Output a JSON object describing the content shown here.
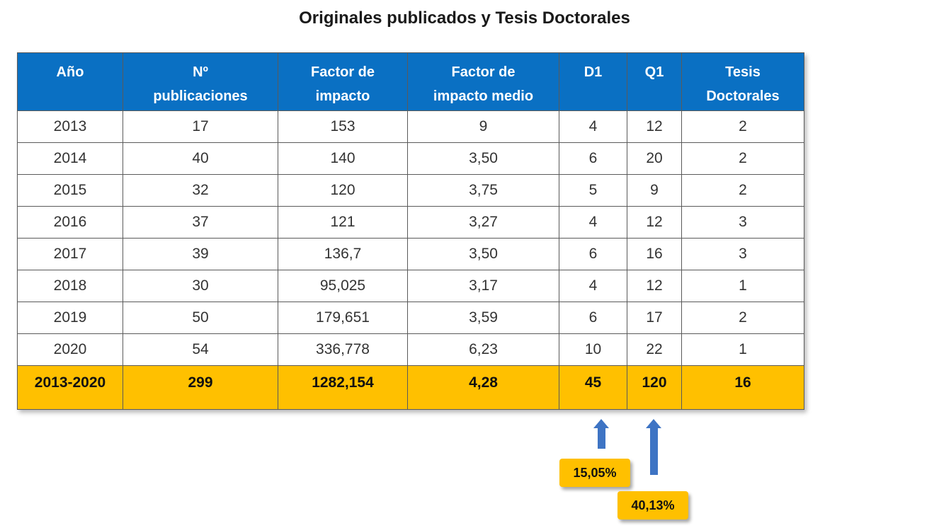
{
  "title": "Originales publicados y Tesis Doctorales",
  "table": {
    "headers": [
      [
        "Año"
      ],
      [
        "Nº",
        "publicaciones"
      ],
      [
        "Factor de",
        "impacto"
      ],
      [
        "Factor de",
        "impacto medio"
      ],
      [
        "D1"
      ],
      [
        "Q1"
      ],
      [
        "Tesis",
        "Doctorales"
      ]
    ],
    "rows": [
      [
        "2013",
        "17",
        "153",
        "9",
        "4",
        "12",
        "2"
      ],
      [
        "2014",
        "40",
        "140",
        "3,50",
        "6",
        "20",
        "2"
      ],
      [
        "2015",
        "32",
        "120",
        "3,75",
        "5",
        "9",
        "2"
      ],
      [
        "2016",
        "37",
        "121",
        "3,27",
        "4",
        "12",
        "3"
      ],
      [
        "2017",
        "39",
        "136,7",
        "3,50",
        "6",
        "16",
        "3"
      ],
      [
        "2018",
        "30",
        "95,025",
        "3,17",
        "4",
        "12",
        "1"
      ],
      [
        "2019",
        "50",
        "179,651",
        "3,59",
        "6",
        "17",
        "2"
      ],
      [
        "2020",
        "54",
        "336,778",
        "6,23",
        "10",
        "22",
        "1"
      ]
    ],
    "total": [
      "2013-2020",
      "299",
      "1282,154",
      "4,28",
      "45",
      "120",
      "16"
    ]
  },
  "callouts": {
    "d1_percent": "15,05%",
    "q1_percent": "40,13%"
  },
  "colors": {
    "header_bg": "#0a70c3",
    "total_bg": "#ffc000",
    "arrow": "#3e74c4"
  }
}
